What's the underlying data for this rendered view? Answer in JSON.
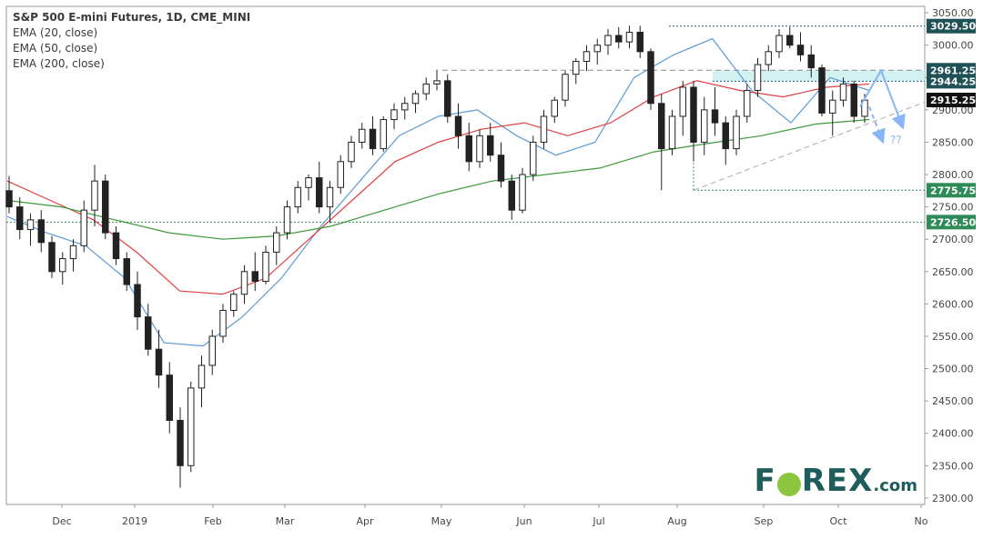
{
  "chart": {
    "title": "S&P 500 E-mini Futures, 1D, CME_MINI",
    "indicators": [
      "EMA (20, close)",
      "EMA (50, close)",
      "EMA (200, close)"
    ],
    "brand": {
      "prefix": "F",
      "mid": "REX",
      "suffix": ".com"
    },
    "annotation": "??"
  },
  "colors": {
    "ema20": "#5b9bd5",
    "ema50": "#e04040",
    "ema200": "#3a9a3a",
    "candle_body": "#222222",
    "price_line_dotted": "#2a7a7a",
    "zone_fill": "#cdeef0",
    "forecast_arrow": "#8ab4f8",
    "badge_dark": "#1f5257",
    "badge_green": "#2e8b57",
    "badge_black": "#111111"
  },
  "chart_data": {
    "type": "candlestick",
    "y_axis": {
      "range": [
        2290,
        3060
      ],
      "ticks": [
        2300,
        2350,
        2400,
        2450,
        2500,
        2550,
        2600,
        2650,
        2700,
        2750,
        2800,
        2850,
        2900,
        2950,
        3000,
        3050
      ],
      "position": "right"
    },
    "x_axis": {
      "labels": [
        "Dec",
        "2019",
        "Feb",
        "Mar",
        "Apr",
        "May",
        "Jun",
        "Jul",
        "Aug",
        "Sep",
        "Oct",
        "No"
      ]
    },
    "price_badges": [
      {
        "label": "3029.50",
        "value": 3029.5,
        "style": "dark"
      },
      {
        "label": "2961.25",
        "value": 2961.25,
        "style": "dark"
      },
      {
        "label": "2944.25",
        "value": 2944.25,
        "style": "dark"
      },
      {
        "label": "2915.25",
        "value": 2915.25,
        "style": "black"
      },
      {
        "label": "2775.75",
        "value": 2775.75,
        "style": "green"
      },
      {
        "label": "2726.50",
        "value": 2726.5,
        "style": "green"
      }
    ],
    "series": [
      {
        "name": "EMA (20, close)",
        "values": [
          2735,
          2710,
          2690,
          2640,
          2540,
          2535,
          2580,
          2640,
          2720,
          2790,
          2860,
          2890,
          2900,
          2860,
          2830,
          2850,
          2950,
          2985,
          3010,
          2930,
          2880,
          2950,
          2930
        ]
      },
      {
        "name": "EMA (50, close)",
        "values": [
          2790,
          2760,
          2730,
          2680,
          2620,
          2615,
          2640,
          2700,
          2760,
          2820,
          2850,
          2870,
          2880,
          2860,
          2880,
          2920,
          2945,
          2930,
          2920,
          2935,
          2940
        ]
      },
      {
        "name": "EMA (200, close)",
        "values": [
          2760,
          2750,
          2730,
          2710,
          2700,
          2705,
          2720,
          2745,
          2770,
          2790,
          2800,
          2810,
          2835,
          2848,
          2860,
          2878,
          2885
        ]
      }
    ],
    "candles": [
      {
        "o": 2775,
        "h": 2798,
        "l": 2740,
        "c": 2750
      },
      {
        "o": 2750,
        "h": 2765,
        "l": 2700,
        "c": 2715
      },
      {
        "o": 2715,
        "h": 2740,
        "l": 2690,
        "c": 2730
      },
      {
        "o": 2730,
        "h": 2745,
        "l": 2680,
        "c": 2695
      },
      {
        "o": 2695,
        "h": 2705,
        "l": 2640,
        "c": 2650
      },
      {
        "o": 2650,
        "h": 2680,
        "l": 2630,
        "c": 2670
      },
      {
        "o": 2670,
        "h": 2700,
        "l": 2650,
        "c": 2690
      },
      {
        "o": 2690,
        "h": 2760,
        "l": 2680,
        "c": 2745
      },
      {
        "o": 2745,
        "h": 2815,
        "l": 2720,
        "c": 2790
      },
      {
        "o": 2790,
        "h": 2800,
        "l": 2700,
        "c": 2710
      },
      {
        "o": 2710,
        "h": 2720,
        "l": 2660,
        "c": 2670
      },
      {
        "o": 2670,
        "h": 2680,
        "l": 2620,
        "c": 2630
      },
      {
        "o": 2630,
        "h": 2650,
        "l": 2560,
        "c": 2580
      },
      {
        "o": 2580,
        "h": 2600,
        "l": 2520,
        "c": 2530
      },
      {
        "o": 2530,
        "h": 2560,
        "l": 2470,
        "c": 2490
      },
      {
        "o": 2490,
        "h": 2510,
        "l": 2400,
        "c": 2420
      },
      {
        "o": 2420,
        "h": 2440,
        "l": 2316,
        "c": 2350
      },
      {
        "o": 2350,
        "h": 2480,
        "l": 2340,
        "c": 2470
      },
      {
        "o": 2470,
        "h": 2520,
        "l": 2440,
        "c": 2505
      },
      {
        "o": 2505,
        "h": 2560,
        "l": 2490,
        "c": 2550
      },
      {
        "o": 2550,
        "h": 2600,
        "l": 2540,
        "c": 2590
      },
      {
        "o": 2590,
        "h": 2620,
        "l": 2580,
        "c": 2615
      },
      {
        "o": 2615,
        "h": 2660,
        "l": 2600,
        "c": 2650
      },
      {
        "o": 2650,
        "h": 2680,
        "l": 2620,
        "c": 2635
      },
      {
        "o": 2635,
        "h": 2690,
        "l": 2630,
        "c": 2680
      },
      {
        "o": 2680,
        "h": 2720,
        "l": 2660,
        "c": 2710
      },
      {
        "o": 2710,
        "h": 2760,
        "l": 2700,
        "c": 2750
      },
      {
        "o": 2750,
        "h": 2790,
        "l": 2740,
        "c": 2780
      },
      {
        "o": 2780,
        "h": 2800,
        "l": 2760,
        "c": 2795
      },
      {
        "o": 2795,
        "h": 2820,
        "l": 2740,
        "c": 2750
      },
      {
        "o": 2750,
        "h": 2790,
        "l": 2725,
        "c": 2780
      },
      {
        "o": 2780,
        "h": 2830,
        "l": 2770,
        "c": 2820
      },
      {
        "o": 2820,
        "h": 2860,
        "l": 2810,
        "c": 2850
      },
      {
        "o": 2850,
        "h": 2880,
        "l": 2840,
        "c": 2870
      },
      {
        "o": 2870,
        "h": 2890,
        "l": 2830,
        "c": 2840
      },
      {
        "o": 2840,
        "h": 2890,
        "l": 2835,
        "c": 2885
      },
      {
        "o": 2885,
        "h": 2910,
        "l": 2870,
        "c": 2900
      },
      {
        "o": 2900,
        "h": 2920,
        "l": 2885,
        "c": 2910
      },
      {
        "o": 2910,
        "h": 2930,
        "l": 2895,
        "c": 2925
      },
      {
        "o": 2925,
        "h": 2950,
        "l": 2915,
        "c": 2940
      },
      {
        "o": 2940,
        "h": 2962,
        "l": 2930,
        "c": 2945
      },
      {
        "o": 2945,
        "h": 2955,
        "l": 2880,
        "c": 2890
      },
      {
        "o": 2890,
        "h": 2910,
        "l": 2840,
        "c": 2860
      },
      {
        "o": 2860,
        "h": 2880,
        "l": 2805,
        "c": 2820
      },
      {
        "o": 2820,
        "h": 2870,
        "l": 2810,
        "c": 2860
      },
      {
        "o": 2860,
        "h": 2880,
        "l": 2820,
        "c": 2830
      },
      {
        "o": 2830,
        "h": 2850,
        "l": 2780,
        "c": 2790
      },
      {
        "o": 2790,
        "h": 2800,
        "l": 2730,
        "c": 2745
      },
      {
        "o": 2745,
        "h": 2810,
        "l": 2740,
        "c": 2800
      },
      {
        "o": 2800,
        "h": 2860,
        "l": 2790,
        "c": 2850
      },
      {
        "o": 2850,
        "h": 2900,
        "l": 2840,
        "c": 2890
      },
      {
        "o": 2890,
        "h": 2920,
        "l": 2880,
        "c": 2915
      },
      {
        "o": 2915,
        "h": 2960,
        "l": 2905,
        "c": 2955
      },
      {
        "o": 2955,
        "h": 2980,
        "l": 2940,
        "c": 2975
      },
      {
        "o": 2975,
        "h": 3000,
        "l": 2960,
        "c": 2990
      },
      {
        "o": 2990,
        "h": 3010,
        "l": 2970,
        "c": 3000
      },
      {
        "o": 3000,
        "h": 3025,
        "l": 2985,
        "c": 3015
      },
      {
        "o": 3015,
        "h": 3028,
        "l": 2995,
        "c": 3005
      },
      {
        "o": 3005,
        "h": 3030,
        "l": 2995,
        "c": 3020
      },
      {
        "o": 3020,
        "h": 3030,
        "l": 2980,
        "c": 2990
      },
      {
        "o": 2990,
        "h": 2995,
        "l": 2900,
        "c": 2910
      },
      {
        "o": 2910,
        "h": 2925,
        "l": 2776,
        "c": 2840
      },
      {
        "o": 2840,
        "h": 2900,
        "l": 2830,
        "c": 2890
      },
      {
        "o": 2890,
        "h": 2945,
        "l": 2860,
        "c": 2935
      },
      {
        "o": 2935,
        "h": 2945,
        "l": 2820,
        "c": 2850
      },
      {
        "o": 2850,
        "h": 2920,
        "l": 2830,
        "c": 2900
      },
      {
        "o": 2900,
        "h": 2935,
        "l": 2860,
        "c": 2880
      },
      {
        "o": 2880,
        "h": 2890,
        "l": 2815,
        "c": 2840
      },
      {
        "o": 2840,
        "h": 2900,
        "l": 2830,
        "c": 2890
      },
      {
        "o": 2890,
        "h": 2940,
        "l": 2880,
        "c": 2930
      },
      {
        "o": 2930,
        "h": 2980,
        "l": 2920,
        "c": 2970
      },
      {
        "o": 2970,
        "h": 3000,
        "l": 2960,
        "c": 2990
      },
      {
        "o": 2990,
        "h": 3025,
        "l": 2980,
        "c": 3015
      },
      {
        "o": 3015,
        "h": 3028,
        "l": 2995,
        "c": 3000
      },
      {
        "o": 3000,
        "h": 3020,
        "l": 2975,
        "c": 2985
      },
      {
        "o": 2985,
        "h": 3000,
        "l": 2950,
        "c": 2965
      },
      {
        "o": 2965,
        "h": 2970,
        "l": 2890,
        "c": 2895
      },
      {
        "o": 2895,
        "h": 2930,
        "l": 2860,
        "c": 2915
      },
      {
        "o": 2915,
        "h": 2950,
        "l": 2905,
        "c": 2940
      },
      {
        "o": 2940,
        "h": 2945,
        "l": 2880,
        "c": 2890
      },
      {
        "o": 2890,
        "h": 2925,
        "l": 2880,
        "c": 2915
      }
    ]
  }
}
